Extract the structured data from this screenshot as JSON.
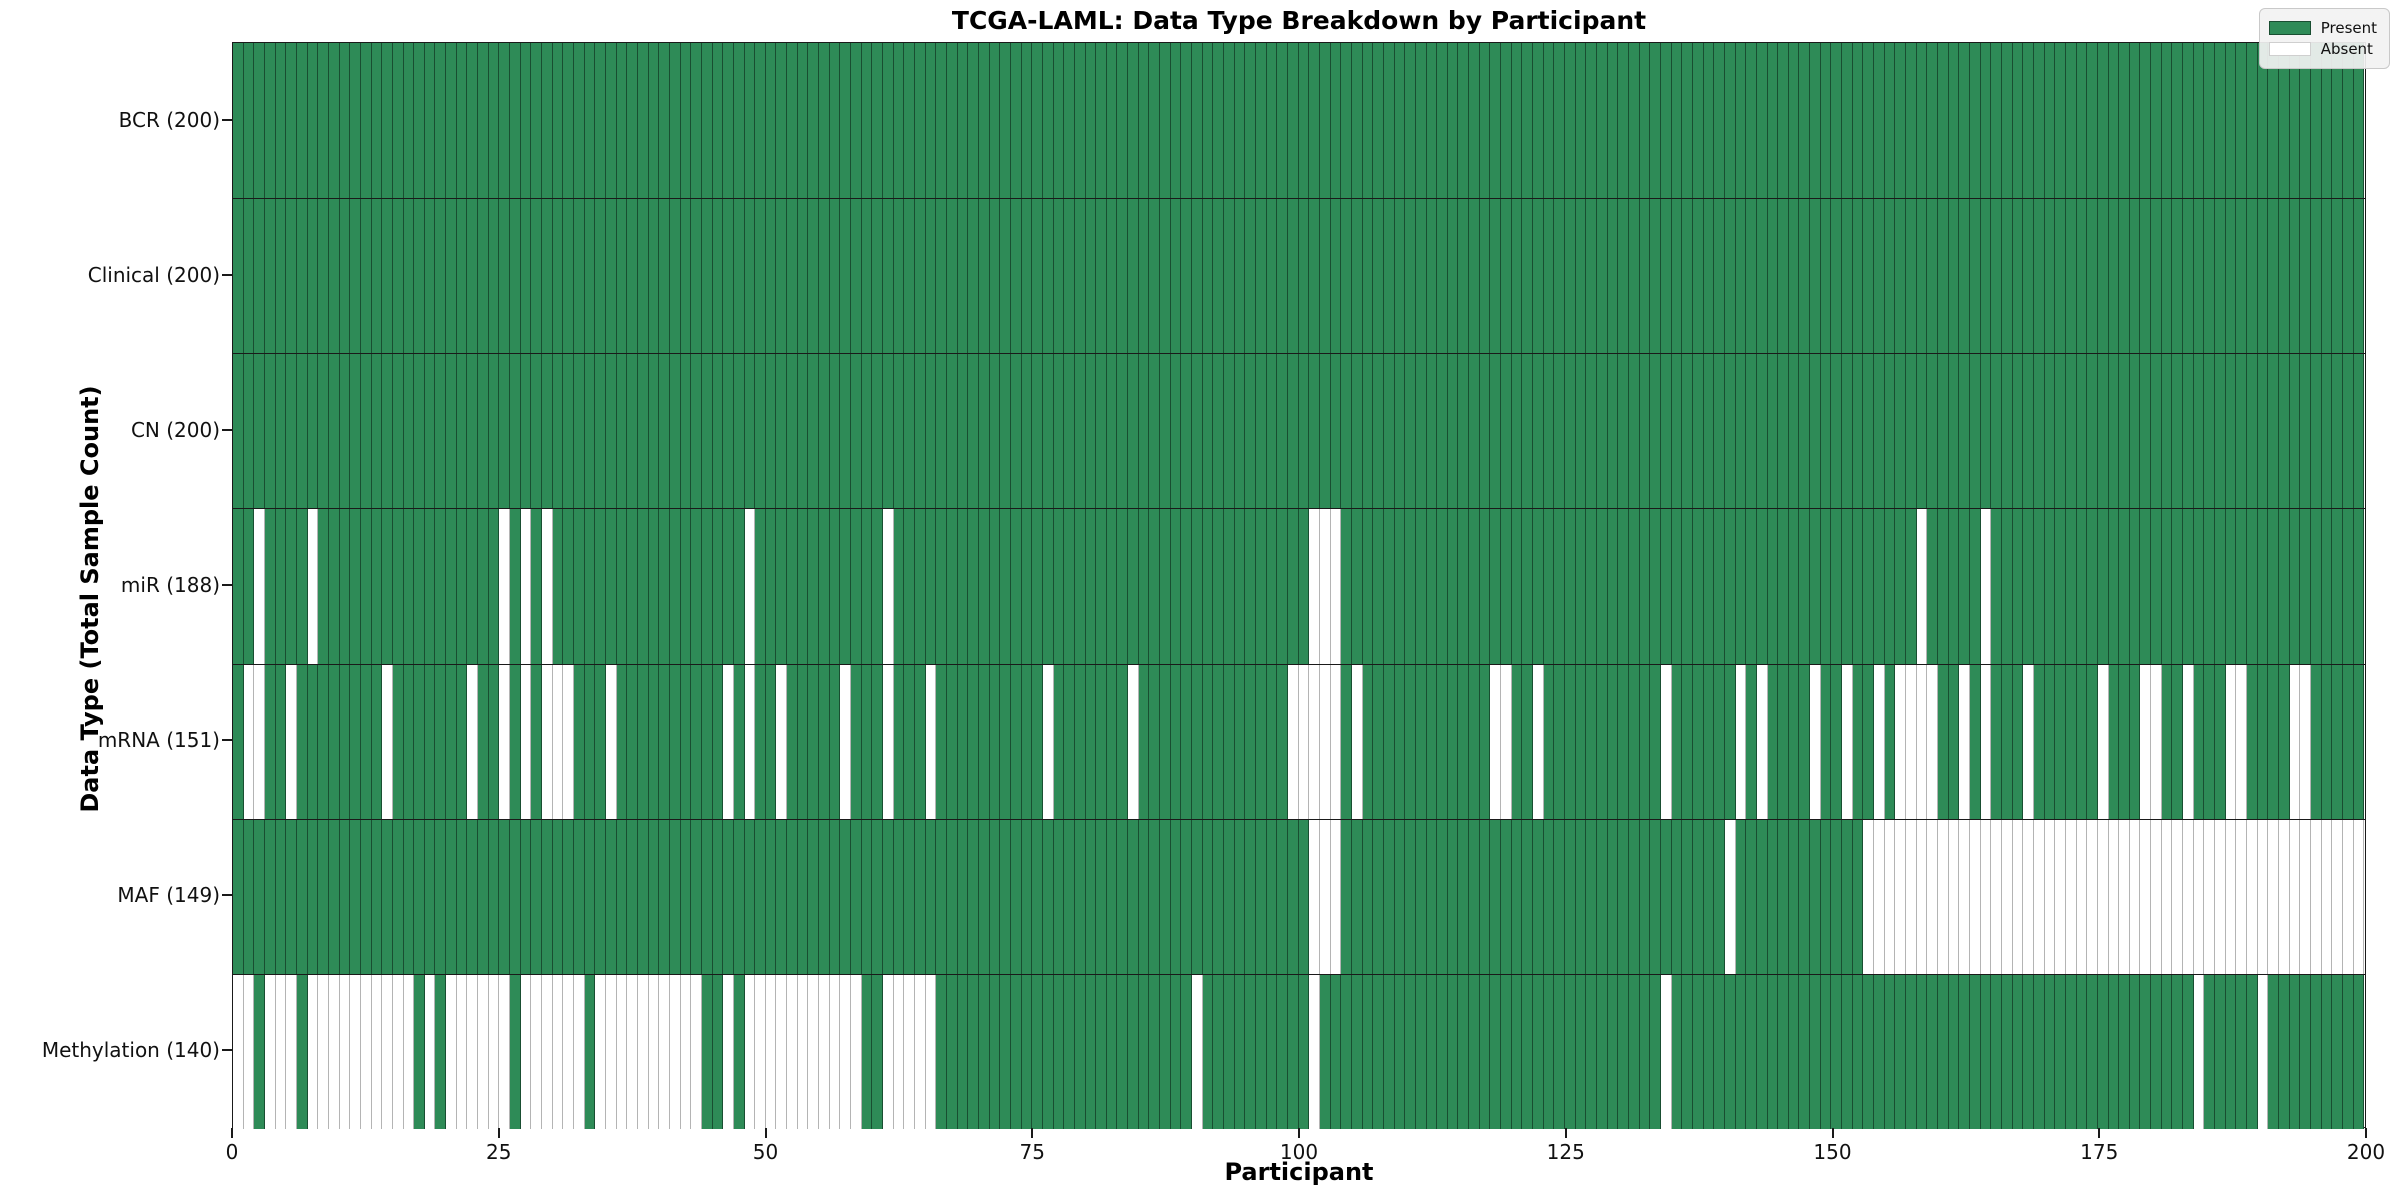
{
  "title": "TCGA-LAML: Data Type Breakdown by Participant",
  "x_axis": {
    "label": "Participant",
    "ticks": [
      0,
      25,
      50,
      75,
      100,
      125,
      150,
      175,
      200
    ],
    "max": 200
  },
  "y_axis": {
    "label": "Data Type (Total Sample Count)"
  },
  "legend": {
    "present_label": "Present",
    "absent_label": "Absent"
  },
  "colors": {
    "present": "#2e8b57",
    "absent": "#ffffff",
    "frame": "#1a1a1a"
  },
  "chart_data": {
    "type": "heatmap",
    "title": "TCGA-LAML: Data Type Breakdown by Participant",
    "xlabel": "Participant",
    "ylabel": "Data Type (Total Sample Count)",
    "n_participants": 200,
    "x_range": [
      0,
      200
    ],
    "legend_position": "upper right",
    "value_legend": {
      "1": "Present",
      "0": "Absent"
    },
    "rows": [
      {
        "label": "BCR (200)",
        "data_type": "BCR",
        "present_count": 200,
        "absent_participants": []
      },
      {
        "label": "Clinical (200)",
        "data_type": "Clinical",
        "present_count": 200,
        "absent_participants": []
      },
      {
        "label": "CN (200)",
        "data_type": "CN",
        "present_count": 200,
        "absent_participants": []
      },
      {
        "label": "miR (188)",
        "data_type": "miR",
        "present_count": 188,
        "absent_participants": [
          2,
          7,
          25,
          27,
          29,
          48,
          61,
          101,
          102,
          103,
          158,
          164
        ]
      },
      {
        "label": "mRNA (151)",
        "data_type": "mRNA",
        "present_count": 151,
        "absent_participants": [
          1,
          2,
          5,
          14,
          22,
          25,
          27,
          29,
          30,
          31,
          35,
          46,
          48,
          51,
          57,
          61,
          65,
          76,
          84,
          99,
          100,
          101,
          102,
          103,
          105,
          118,
          119,
          122,
          134,
          141,
          143,
          148,
          151,
          154,
          156,
          157,
          158,
          159,
          162,
          164,
          168,
          175,
          179,
          180,
          183,
          187,
          188,
          193,
          194
        ]
      },
      {
        "label": "MAF (149)",
        "data_type": "MAF",
        "present_count": 149,
        "absent_participants": [
          101,
          102,
          103,
          140,
          153,
          154,
          155,
          156,
          157,
          158,
          159,
          160,
          161,
          162,
          163,
          164,
          165,
          166,
          167,
          168,
          169,
          170,
          171,
          172,
          173,
          174,
          175,
          176,
          177,
          178,
          179,
          180,
          181,
          182,
          183,
          184,
          185,
          186,
          187,
          188,
          189,
          190,
          191,
          192,
          193,
          194,
          195,
          196,
          197,
          198,
          199
        ]
      },
      {
        "label": "Methylation (140)",
        "data_type": "Methylation",
        "present_count": 140,
        "absent_participants": [
          0,
          1,
          3,
          4,
          5,
          7,
          8,
          9,
          10,
          11,
          12,
          13,
          14,
          15,
          16,
          18,
          20,
          21,
          22,
          23,
          24,
          25,
          27,
          28,
          29,
          30,
          31,
          32,
          34,
          35,
          36,
          37,
          38,
          39,
          40,
          41,
          42,
          43,
          46,
          48,
          49,
          50,
          51,
          52,
          53,
          54,
          55,
          56,
          57,
          58,
          61,
          62,
          63,
          64,
          65,
          90,
          101,
          134,
          184,
          190
        ]
      }
    ]
  }
}
